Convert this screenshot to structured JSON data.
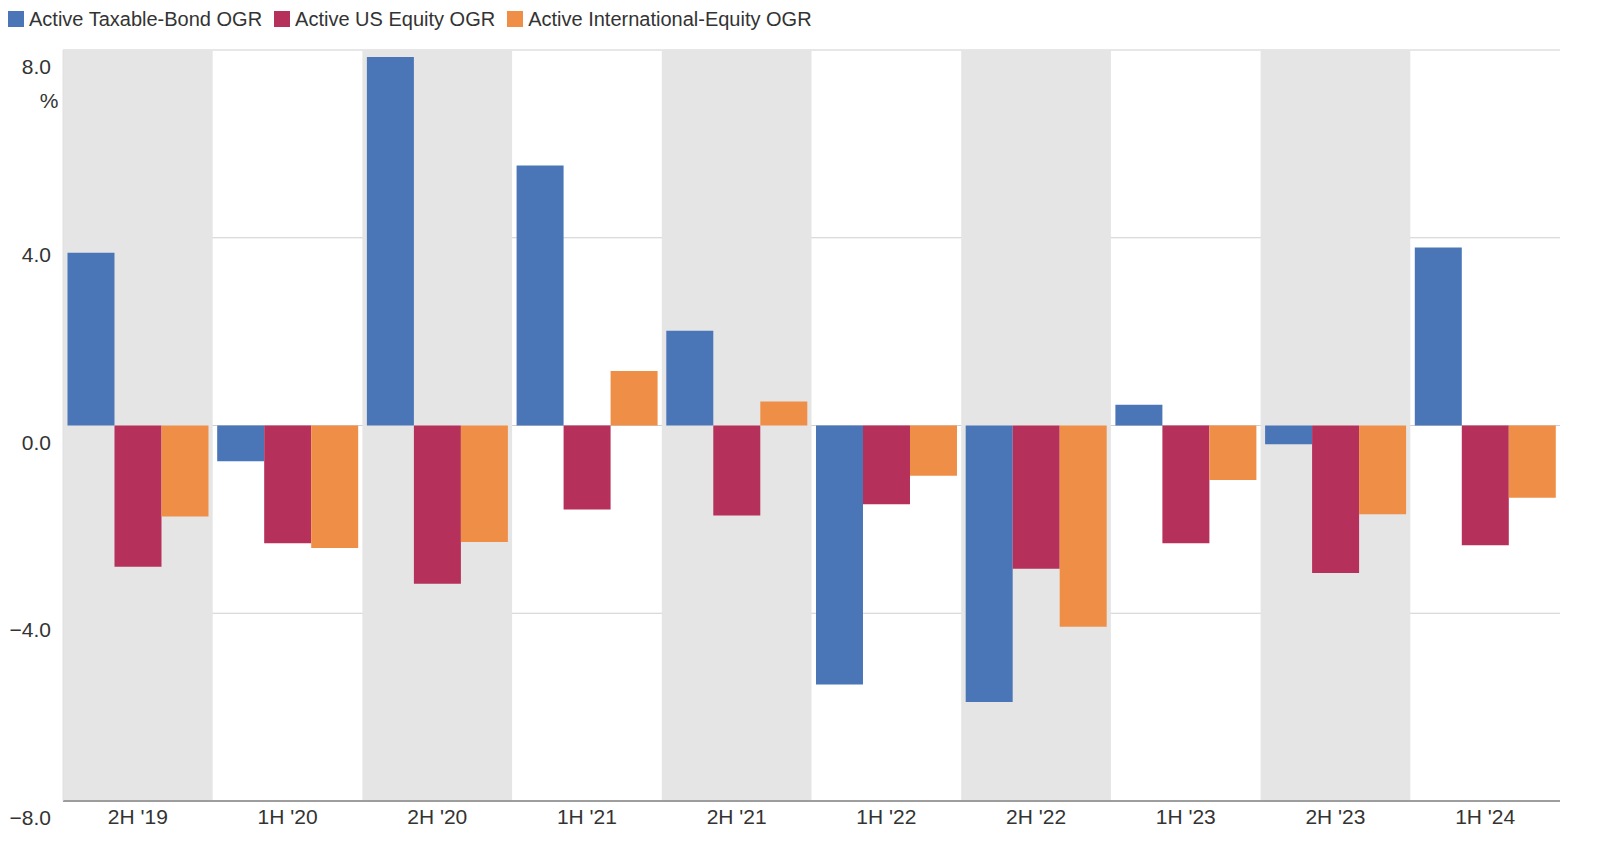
{
  "chart_data": {
    "type": "bar",
    "categories": [
      "2H '19",
      "1H '20",
      "2H '20",
      "1H '21",
      "2H '21",
      "1H '22",
      "2H '22",
      "1H '23",
      "2H '23",
      "1H '24"
    ],
    "series": [
      {
        "name": "Active Taxable-Bond OGR",
        "color": "#4a76b8",
        "values": [
          3.68,
          -0.76,
          7.85,
          5.54,
          2.02,
          -5.52,
          -5.89,
          0.44,
          -0.4,
          3.79
        ]
      },
      {
        "name": "Active US Equity OGR",
        "color": "#b5305a",
        "values": [
          -3.01,
          -2.51,
          -3.37,
          -1.79,
          -1.92,
          -1.68,
          -3.05,
          -2.51,
          -3.14,
          -2.55
        ]
      },
      {
        "name": "Active International-Equity OGR",
        "color": "#ef8f47",
        "values": [
          -1.94,
          -2.61,
          -2.48,
          1.16,
          0.51,
          -1.07,
          -4.29,
          -1.16,
          -1.89,
          -1.54
        ]
      }
    ],
    "ylim": [
      -8,
      8
    ],
    "yticks": [
      {
        "value": -8,
        "label": "−8.0"
      },
      {
        "value": -4,
        "label": "−4.0"
      },
      {
        "value": 0,
        "label": "0.0"
      },
      {
        "value": 4,
        "label": "4.0"
      },
      {
        "value": 8,
        "label": "8.0"
      }
    ],
    "ylabel": "%",
    "grid": true,
    "legend": "top left"
  }
}
